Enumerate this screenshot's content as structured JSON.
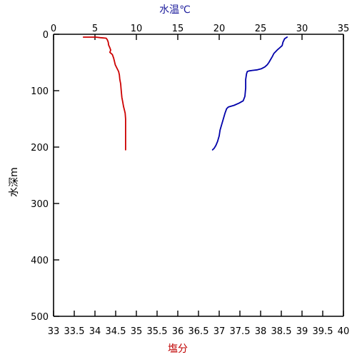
{
  "chart_data": {
    "type": "line",
    "top_axis": {
      "label": "水温℃",
      "range": [
        0,
        35
      ],
      "ticks": [
        "0",
        "5",
        "10",
        "15",
        "20",
        "25",
        "30",
        "35"
      ],
      "color": "#1c1c9c"
    },
    "bottom_axis": {
      "label": "塩分",
      "range": [
        33,
        40
      ],
      "ticks": [
        "33",
        "33.5",
        "34",
        "34.5",
        "35",
        "35.5",
        "36",
        "36.5",
        "37",
        "37.5",
        "38",
        "38.5",
        "39",
        "39.5",
        "40"
      ],
      "color": "#c00000"
    },
    "y_axis": {
      "label": "水深m",
      "range": [
        0,
        500
      ],
      "inverted": true,
      "ticks": [
        "0",
        "100",
        "200",
        "300",
        "400",
        "500"
      ]
    },
    "grid": false,
    "series": [
      {
        "axis": "bottom",
        "color": "#cc0000",
        "points": [
          [
            33.72,
            5
          ],
          [
            34.02,
            5
          ],
          [
            34.12,
            6
          ],
          [
            34.27,
            7
          ],
          [
            34.3,
            10
          ],
          [
            34.32,
            14
          ],
          [
            34.33,
            19
          ],
          [
            34.36,
            24
          ],
          [
            34.38,
            28
          ],
          [
            34.36,
            32
          ],
          [
            34.42,
            36
          ],
          [
            34.45,
            42
          ],
          [
            34.47,
            48
          ],
          [
            34.49,
            54
          ],
          [
            34.53,
            60
          ],
          [
            34.57,
            66
          ],
          [
            34.59,
            72
          ],
          [
            34.6,
            80
          ],
          [
            34.62,
            88
          ],
          [
            34.63,
            96
          ],
          [
            34.64,
            104
          ],
          [
            34.65,
            112
          ],
          [
            34.67,
            120
          ],
          [
            34.69,
            128
          ],
          [
            34.71,
            134
          ],
          [
            34.73,
            140
          ],
          [
            34.74,
            150
          ],
          [
            34.74,
            165
          ],
          [
            34.74,
            180
          ],
          [
            34.74,
            195
          ],
          [
            34.74,
            205
          ]
        ]
      },
      {
        "axis": "top",
        "color": "#0000aa",
        "points": [
          [
            28.2,
            5
          ],
          [
            27.9,
            8
          ],
          [
            27.7,
            14
          ],
          [
            27.6,
            20
          ],
          [
            27.3,
            24
          ],
          [
            27.0,
            28
          ],
          [
            26.6,
            34
          ],
          [
            26.4,
            40
          ],
          [
            26.2,
            45
          ],
          [
            26.0,
            50
          ],
          [
            25.8,
            54
          ],
          [
            25.5,
            58
          ],
          [
            25.1,
            61
          ],
          [
            24.6,
            63
          ],
          [
            24.0,
            64
          ],
          [
            23.6,
            65
          ],
          [
            23.4,
            66
          ],
          [
            23.3,
            70
          ],
          [
            23.2,
            80
          ],
          [
            23.2,
            95
          ],
          [
            23.1,
            110
          ],
          [
            22.9,
            118
          ],
          [
            22.4,
            122
          ],
          [
            21.8,
            126
          ],
          [
            21.1,
            129
          ],
          [
            20.9,
            132
          ],
          [
            20.7,
            140
          ],
          [
            20.5,
            150
          ],
          [
            20.3,
            160
          ],
          [
            20.1,
            170
          ],
          [
            20.0,
            180
          ],
          [
            19.8,
            190
          ],
          [
            19.6,
            197
          ],
          [
            19.4,
            202
          ],
          [
            19.2,
            205
          ]
        ]
      }
    ]
  }
}
